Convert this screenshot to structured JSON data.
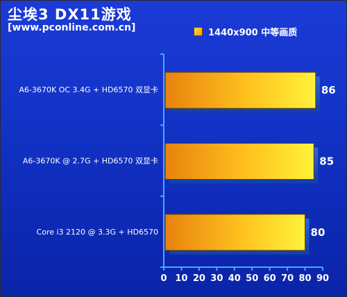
{
  "header": {
    "title": "尘埃3   DX11游戏",
    "subtitle": "[www.pconline.com.cn]"
  },
  "colors": {
    "background_top": "#1c3bd6",
    "background_bottom": "#0a24a8",
    "bar_light": "#fff23a",
    "bar_dark": "#e8820e",
    "bar_shadow": "#1a5bc4",
    "axis": "#4aa8ff"
  },
  "chart_data": {
    "type": "bar",
    "orientation": "horizontal",
    "title": "尘埃3   DX11游戏",
    "subtitle": "[www.pconline.com.cn]",
    "categories": [
      "A6-3670K OC 3.4G + HD6570 双显卡",
      "A6-3670K @ 2.7G + HD6570 双显卡",
      "Core i3 2120 @ 3.3G + HD6570"
    ],
    "series": [
      {
        "name": "1440x900 中等画质",
        "values": [
          86,
          85,
          80
        ]
      }
    ],
    "xlim": [
      0,
      90
    ],
    "xticks": [
      0,
      10,
      20,
      30,
      40,
      50,
      60,
      70,
      80,
      90
    ],
    "legend_position": "top-right",
    "grid": false
  }
}
